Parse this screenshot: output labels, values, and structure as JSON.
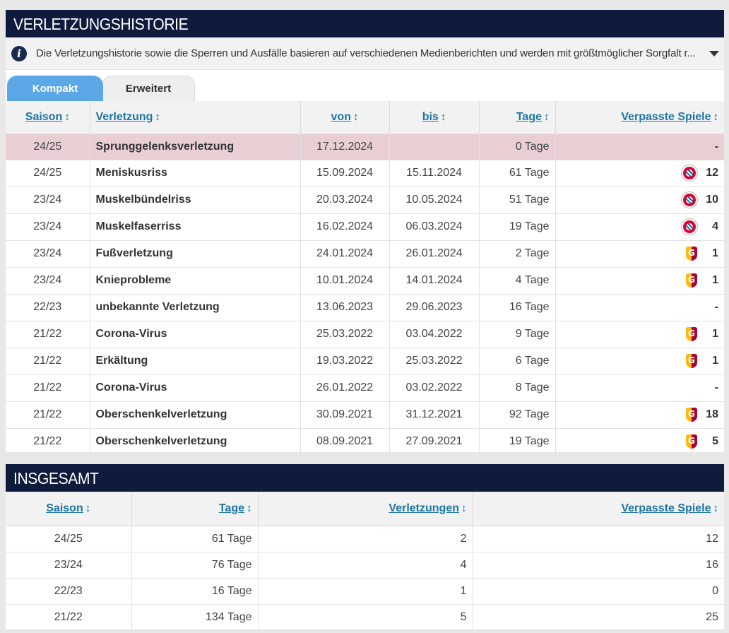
{
  "history": {
    "title": "VERLETZUNGSHISTORIE",
    "info_text": "Die Verletzungshistorie sowie die Sperren und Ausfälle basieren auf verschiedenen Medienberichten und werden mit größtmöglicher Sorgfalt r...",
    "tabs": [
      {
        "label": "Kompakt",
        "active": true
      },
      {
        "label": "Erweitert",
        "active": false
      }
    ],
    "columns": [
      "Saison",
      "Verletzung",
      "von",
      "bis",
      "Tage",
      "Verpasste Spiele"
    ],
    "sort_icon": "↕",
    "rows": [
      {
        "season": "24/25",
        "injury": "Sprunggelenksverletzung",
        "from": "17.12.2024",
        "until": "",
        "days": "0 Tage",
        "club": "",
        "games": "-",
        "highlight": true
      },
      {
        "season": "24/25",
        "injury": "Meniskusriss",
        "from": "15.09.2024",
        "until": "15.11.2024",
        "days": "61 Tage",
        "club": "bayern-crest-icon",
        "games": "12"
      },
      {
        "season": "23/24",
        "injury": "Muskelbündelriss",
        "from": "20.03.2024",
        "until": "10.05.2024",
        "days": "51 Tage",
        "club": "bayern-crest-icon",
        "games": "10"
      },
      {
        "season": "23/24",
        "injury": "Muskelfaserriss",
        "from": "16.02.2024",
        "until": "06.03.2024",
        "days": "19 Tage",
        "club": "bayern-crest-icon",
        "games": "4"
      },
      {
        "season": "23/24",
        "injury": "Fußverletzung",
        "from": "24.01.2024",
        "until": "26.01.2024",
        "days": "2 Tage",
        "club": "galatasaray-crest-icon",
        "games": "1"
      },
      {
        "season": "23/24",
        "injury": "Knieprobleme",
        "from": "10.01.2024",
        "until": "14.01.2024",
        "days": "4 Tage",
        "club": "galatasaray-crest-icon",
        "games": "1"
      },
      {
        "season": "22/23",
        "injury": "unbekannte Verletzung",
        "from": "13.06.2023",
        "until": "29.06.2023",
        "days": "16 Tage",
        "club": "",
        "games": "-"
      },
      {
        "season": "21/22",
        "injury": "Corona-Virus",
        "from": "25.03.2022",
        "until": "03.04.2022",
        "days": "9 Tage",
        "club": "galatasaray-crest-icon",
        "games": "1"
      },
      {
        "season": "21/22",
        "injury": "Erkältung",
        "from": "19.03.2022",
        "until": "25.03.2022",
        "days": "6 Tage",
        "club": "galatasaray-crest-icon",
        "games": "1"
      },
      {
        "season": "21/22",
        "injury": "Corona-Virus",
        "from": "26.01.2022",
        "until": "03.02.2022",
        "days": "8 Tage",
        "club": "",
        "games": "-"
      },
      {
        "season": "21/22",
        "injury": "Oberschenkelverletzung",
        "from": "30.09.2021",
        "until": "31.12.2021",
        "days": "92 Tage",
        "club": "galatasaray-crest-icon",
        "games": "18"
      },
      {
        "season": "21/22",
        "injury": "Oberschenkelverletzung",
        "from": "08.09.2021",
        "until": "27.09.2021",
        "days": "19 Tage",
        "club": "galatasaray-crest-icon",
        "games": "5"
      }
    ]
  },
  "summary": {
    "title": "INSGESAMT",
    "columns": [
      "Saison",
      "Tage",
      "Verletzungen",
      "Verpasste Spiele"
    ],
    "rows": [
      {
        "season": "24/25",
        "days": "61 Tage",
        "injuries": "2",
        "games": "12"
      },
      {
        "season": "23/24",
        "days": "76 Tage",
        "injuries": "4",
        "games": "16"
      },
      {
        "season": "22/23",
        "days": "16 Tage",
        "injuries": "1",
        "games": "0"
      },
      {
        "season": "21/22",
        "days": "134 Tage",
        "injuries": "5",
        "games": "25"
      }
    ]
  },
  "colors": {
    "header_bg": "#0e1b3d",
    "tab_active": "#5ca8e6",
    "link": "#1d75a3",
    "highlight_row": "#e9cfd4"
  }
}
